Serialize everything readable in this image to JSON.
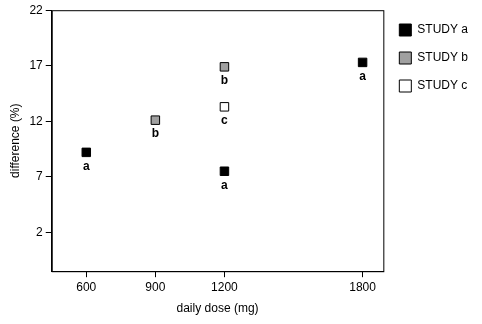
{
  "chart_data": {
    "type": "scatter",
    "x_label": "daily dose (mg)",
    "y_label": "difference (%)",
    "xlim": [
      450,
      1890
    ],
    "xticks": [
      600,
      900,
      1200,
      1800
    ],
    "ylim": [
      -1.5,
      22
    ],
    "yticks": [
      2,
      7,
      12,
      17,
      22
    ],
    "grid": false,
    "legend": "right",
    "series": [
      {
        "name": "STUDY a",
        "color": "#000000",
        "marker": "square",
        "x": [
          600,
          1200,
          1800
        ],
        "values": [
          9.2,
          7.5,
          17.3
        ],
        "point_labels": [
          "a",
          "a",
          "a"
        ]
      },
      {
        "name": "STUDY b",
        "color": "#a0a0a0",
        "marker": "square",
        "x": [
          900,
          1200
        ],
        "values": [
          12.1,
          16.9
        ],
        "point_labels": [
          "b",
          "b"
        ]
      },
      {
        "name": "STUDY c",
        "color": "#ffffff",
        "marker": "square",
        "x": [
          1200
        ],
        "values": [
          13.3
        ],
        "point_labels": [
          "c"
        ]
      }
    ]
  }
}
